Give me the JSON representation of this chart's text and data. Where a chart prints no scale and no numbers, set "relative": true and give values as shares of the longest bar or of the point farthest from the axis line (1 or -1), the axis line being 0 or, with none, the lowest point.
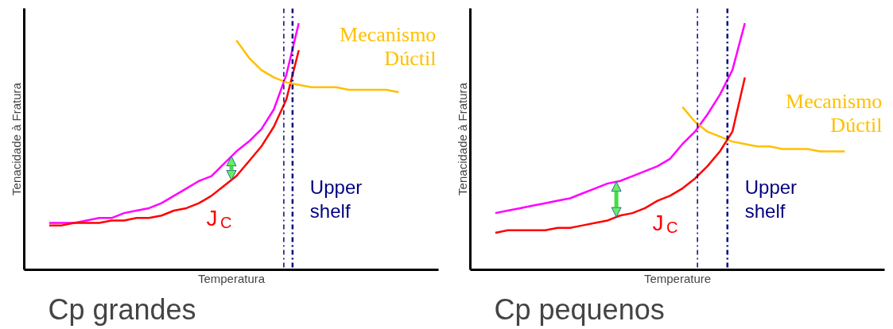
{
  "chart_data": [
    {
      "type": "line",
      "relative": true,
      "title": "Cp grandes",
      "xlabel": "Temperatura",
      "ylabel": "Tenacidade à Fratura",
      "categories": [
        null,
        null,
        null,
        null,
        null,
        null,
        null,
        null,
        null,
        null,
        null,
        null,
        null,
        null,
        null,
        null,
        null,
        null,
        null,
        null,
        null,
        null,
        null,
        null,
        null,
        null,
        null,
        null,
        null
      ],
      "series": [
        {
          "color": "#ff00ff",
          "values": [
            0.19,
            0.19,
            0.19,
            0.2,
            0.21,
            0.21,
            0.23,
            0.24,
            0.25,
            0.27,
            0.3,
            0.33,
            0.36,
            0.38,
            0.43,
            0.48,
            0.52,
            0.57,
            0.65,
            0.79,
            1.0,
            null,
            null,
            null,
            null,
            null,
            null,
            null,
            null
          ]
        },
        {
          "name": "J$_{C}$",
          "color": "#ff0000",
          "values": [
            0.18,
            0.18,
            0.19,
            0.19,
            0.19,
            0.2,
            0.2,
            0.21,
            0.21,
            0.22,
            0.24,
            0.25,
            0.27,
            0.3,
            0.34,
            0.38,
            0.44,
            0.5,
            0.58,
            0.69,
            0.89,
            null,
            null,
            null,
            null,
            null,
            null,
            null,
            null
          ]
        },
        {
          "name": "Mecanismo Dúctil",
          "color": "#ffc000",
          "values": [
            null,
            null,
            null,
            null,
            null,
            null,
            null,
            null,
            null,
            null,
            null,
            null,
            null,
            null,
            null,
            0.93,
            0.86,
            0.81,
            0.78,
            0.76,
            0.75,
            0.74,
            0.74,
            0.74,
            0.73,
            0.73,
            0.73,
            0.73,
            0.72
          ]
        }
      ],
      "annotations": [
        "Upper shelf"
      ]
    },
    {
      "type": "line",
      "relative": true,
      "title": "Cp pequenos",
      "xlabel": "Temperature",
      "ylabel": "Tenacidade à Fratura",
      "categories": [
        null,
        null,
        null,
        null,
        null,
        null,
        null,
        null,
        null,
        null,
        null,
        null,
        null,
        null,
        null,
        null,
        null,
        null,
        null,
        null,
        null,
        null,
        null,
        null,
        null,
        null,
        null,
        null,
        null
      ],
      "series": [
        {
          "color": "#ff00ff",
          "values": [
            0.23,
            0.24,
            0.25,
            0.26,
            0.27,
            0.28,
            0.29,
            0.31,
            0.33,
            0.35,
            0.36,
            0.38,
            0.4,
            0.42,
            0.45,
            0.51,
            0.56,
            0.63,
            0.71,
            0.81,
            1.0,
            null,
            null,
            null,
            null,
            null,
            null,
            null,
            null
          ]
        },
        {
          "name": "J$_{C}$",
          "color": "#ff0000",
          "values": [
            0.15,
            0.16,
            0.16,
            0.16,
            0.16,
            0.17,
            0.17,
            0.18,
            0.19,
            0.2,
            0.22,
            0.23,
            0.25,
            0.28,
            0.3,
            0.33,
            0.37,
            0.42,
            0.48,
            0.56,
            0.78,
            null,
            null,
            null,
            null,
            null,
            null,
            null,
            null
          ]
        },
        {
          "name": "Mecanismo Dúctil",
          "color": "#ffc000",
          "values": [
            null,
            null,
            null,
            null,
            null,
            null,
            null,
            null,
            null,
            null,
            null,
            null,
            null,
            null,
            null,
            0.66,
            0.6,
            0.56,
            0.54,
            0.52,
            0.51,
            0.5,
            0.5,
            0.49,
            0.49,
            0.49,
            0.48,
            0.48,
            0.48
          ]
        }
      ],
      "annotations": [
        "Upper shelf"
      ]
    }
  ]
}
